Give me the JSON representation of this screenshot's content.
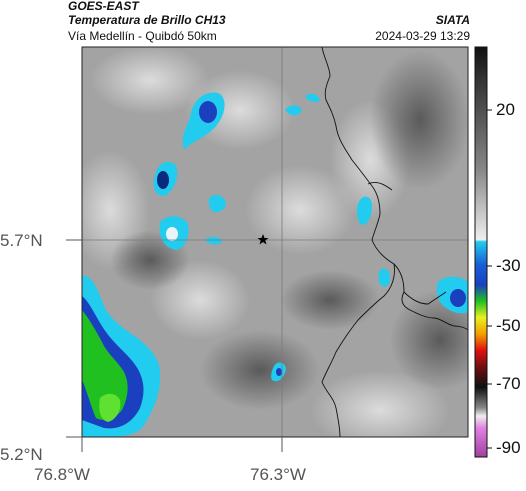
{
  "header": {
    "satellite": "GOES-EAST",
    "product": "Temperatura de Brillo CH13",
    "location": "Vía Medellín - Quibdó 50km",
    "org": "SIATA",
    "datetime": "2024-03-29 13:29"
  },
  "axes": {
    "lat_labels": [
      "5.7°N",
      "5.2°N"
    ],
    "lon_labels": [
      "76.8°W",
      "76.3°W"
    ]
  },
  "colorbar": {
    "tick_labels": [
      "20",
      "-30",
      "-50",
      "-70",
      "-90"
    ],
    "colors": {
      "warm_gray_top": "#1a1a1a",
      "warm_gray_bottom": "#e8e8e8",
      "cyan": "#22ccee",
      "blue": "#1040c0",
      "green": "#20c020",
      "yellow": "#f0f000",
      "red": "#e01010",
      "dark": "#101010",
      "magenta": "#c040c0"
    }
  },
  "map": {
    "marker": "star",
    "background_gray": "#9a9a9a",
    "border_color": "#111111",
    "gridline_color": "#777777"
  }
}
